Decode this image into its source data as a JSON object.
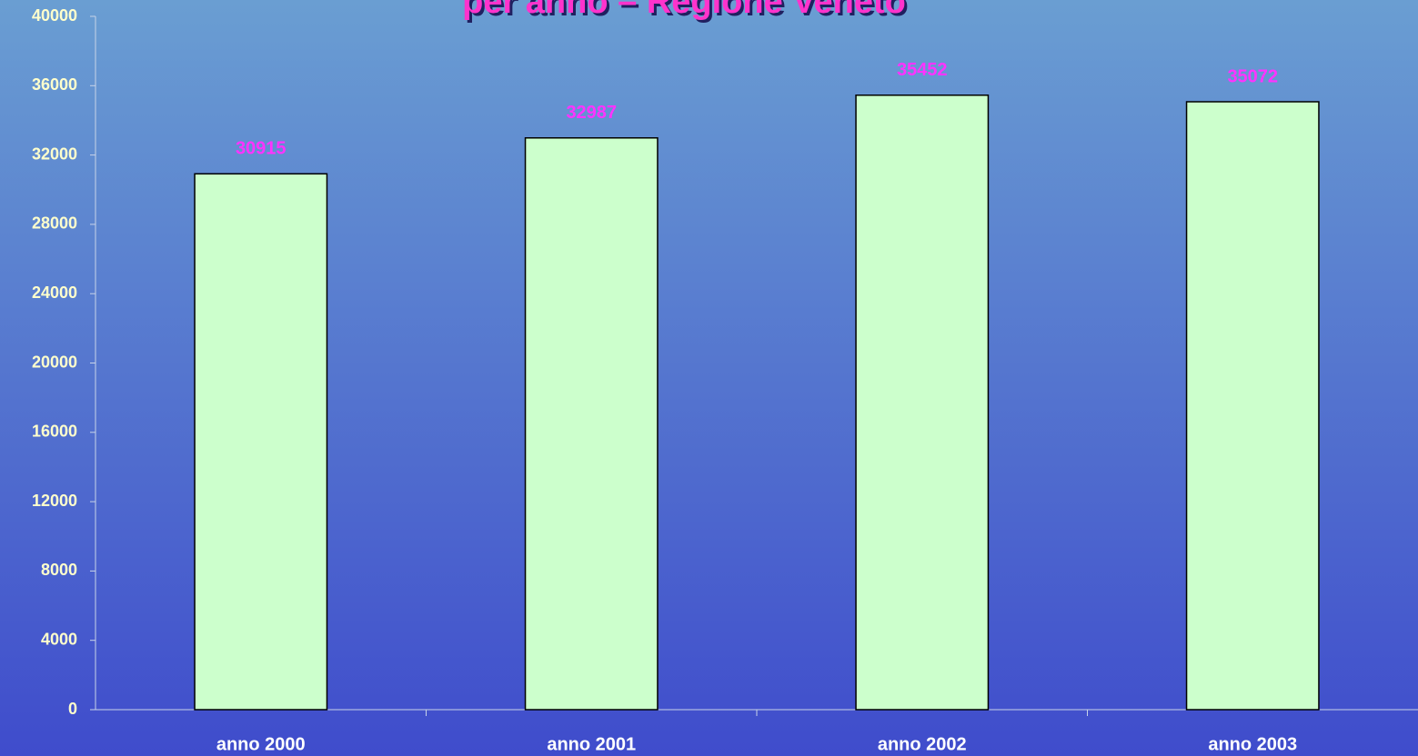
{
  "chart_data": {
    "type": "bar",
    "title": "per anno – Regione Veneto",
    "categories": [
      "anno 2000",
      "anno 2001",
      "anno 2002",
      "anno 2003"
    ],
    "values": [
      30915,
      32987,
      35452,
      35072
    ],
    "color": "#ccffcc",
    "ylim": [
      0,
      40000
    ],
    "yticks": [
      0,
      4000,
      8000,
      12000,
      16000,
      20000,
      24000,
      28000,
      32000,
      36000,
      40000
    ],
    "grid": false
  }
}
